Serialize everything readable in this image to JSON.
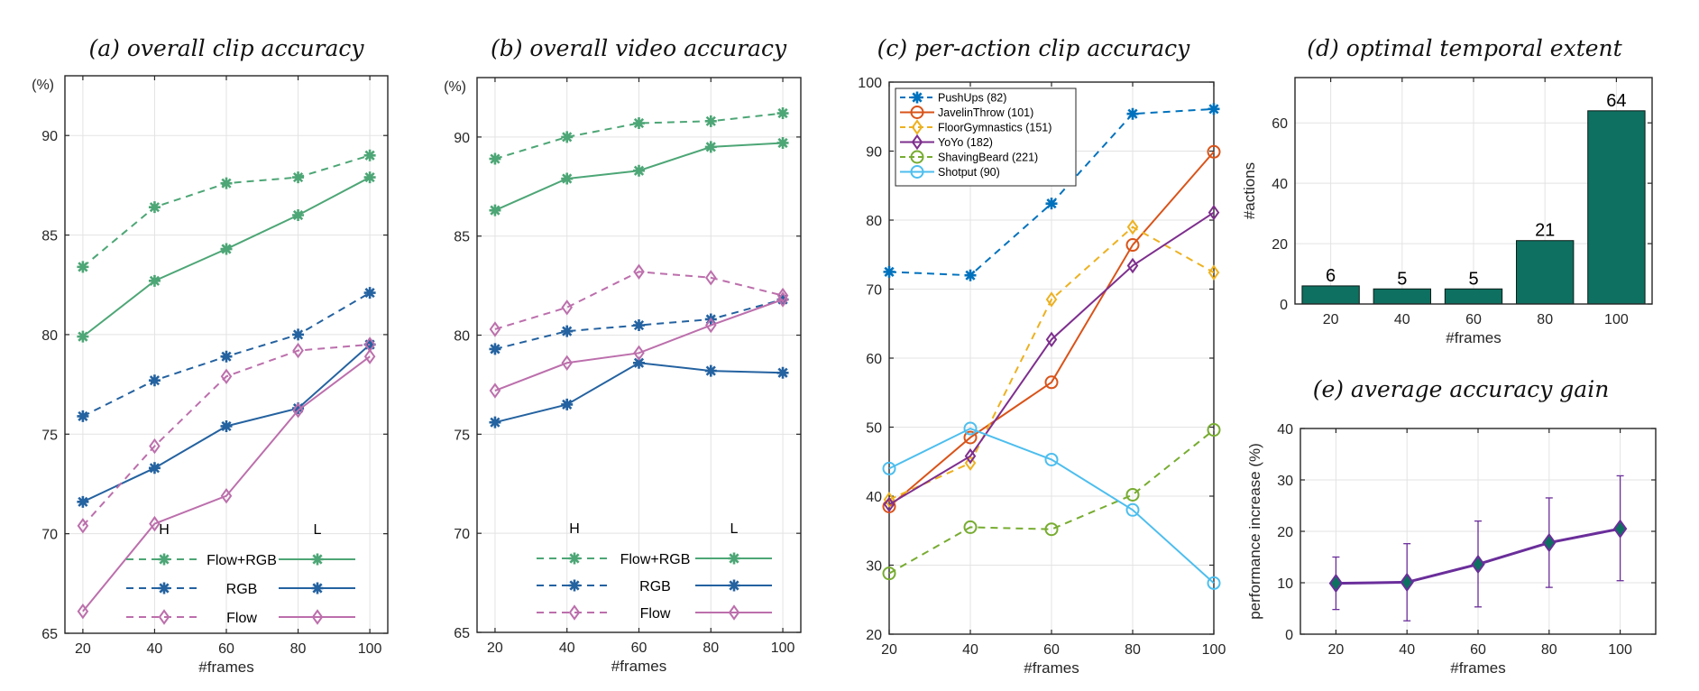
{
  "chart_data": [
    {
      "id": "a",
      "type": "line",
      "title": "(a) overall clip accuracy",
      "xlabel": "#frames",
      "ylabel": "(%)",
      "x": [
        20,
        40,
        60,
        80,
        100
      ],
      "xlim": [
        15,
        105
      ],
      "ylim": [
        65,
        93
      ],
      "yticks": [
        65,
        70,
        75,
        80,
        85,
        90
      ],
      "xticks": [
        20,
        40,
        60,
        80,
        100
      ],
      "grid": true,
      "legend": {
        "placement": "bottom-right",
        "col_headers": [
          "H",
          "L"
        ],
        "rows": [
          "Flow+RGB",
          "RGB",
          "Flow"
        ]
      },
      "series": [
        {
          "name": "Flow+RGB (H)",
          "group": "Flow+RGB",
          "style": "dashed",
          "marker": "asterisk",
          "color": "#4DA676",
          "values": [
            83.4,
            86.4,
            87.6,
            87.9,
            89.0
          ]
        },
        {
          "name": "Flow+RGB (L)",
          "group": "Flow+RGB",
          "style": "solid",
          "marker": "asterisk",
          "color": "#4DA676",
          "values": [
            79.9,
            82.7,
            84.3,
            86.0,
            87.9
          ]
        },
        {
          "name": "RGB (H)",
          "group": "RGB",
          "style": "dashed",
          "marker": "asterisk",
          "color": "#2462A0",
          "values": [
            75.9,
            77.7,
            78.9,
            80.0,
            82.1
          ]
        },
        {
          "name": "RGB (L)",
          "group": "RGB",
          "style": "solid",
          "marker": "asterisk",
          "color": "#2462A0",
          "values": [
            71.6,
            73.3,
            75.4,
            76.3,
            79.5
          ]
        },
        {
          "name": "Flow (H)",
          "group": "Flow",
          "style": "dashed",
          "marker": "diamond",
          "color": "#BC6FAC",
          "values": [
            70.4,
            74.4,
            77.9,
            79.2,
            79.5
          ]
        },
        {
          "name": "Flow (L)",
          "group": "Flow",
          "style": "solid",
          "marker": "diamond",
          "color": "#BC6FAC",
          "values": [
            66.1,
            70.5,
            71.9,
            76.2,
            78.9
          ]
        }
      ]
    },
    {
      "id": "b",
      "type": "line",
      "title": "(b) overall video accuracy",
      "xlabel": "#frames",
      "ylabel": "(%)",
      "x": [
        20,
        40,
        60,
        80,
        100
      ],
      "xlim": [
        15,
        105
      ],
      "ylim": [
        65,
        93
      ],
      "yticks": [
        65,
        70,
        75,
        80,
        85,
        90
      ],
      "xticks": [
        20,
        40,
        60,
        80,
        100
      ],
      "grid": true,
      "legend": {
        "placement": "bottom-right",
        "col_headers": [
          "H",
          "L"
        ],
        "rows": [
          "Flow+RGB",
          "RGB",
          "Flow"
        ]
      },
      "series": [
        {
          "name": "Flow+RGB (H)",
          "group": "Flow+RGB",
          "style": "dashed",
          "marker": "asterisk",
          "color": "#4DA676",
          "values": [
            88.9,
            90.0,
            90.7,
            90.8,
            91.2
          ]
        },
        {
          "name": "Flow+RGB (L)",
          "group": "Flow+RGB",
          "style": "solid",
          "marker": "asterisk",
          "color": "#4DA676",
          "values": [
            86.3,
            87.9,
            88.3,
            89.5,
            89.7
          ]
        },
        {
          "name": "RGB (H)",
          "group": "RGB",
          "style": "dashed",
          "marker": "asterisk",
          "color": "#2462A0",
          "values": [
            79.3,
            80.2,
            80.5,
            80.8,
            81.8
          ]
        },
        {
          "name": "RGB (L)",
          "group": "RGB",
          "style": "solid",
          "marker": "asterisk",
          "color": "#2462A0",
          "values": [
            75.6,
            76.5,
            78.6,
            78.2,
            78.1
          ]
        },
        {
          "name": "Flow (H)",
          "group": "Flow",
          "style": "dashed",
          "marker": "diamond",
          "color": "#BC6FAC",
          "values": [
            80.3,
            81.4,
            83.2,
            82.9,
            82.0
          ]
        },
        {
          "name": "Flow (L)",
          "group": "Flow",
          "style": "solid",
          "marker": "diamond",
          "color": "#BC6FAC",
          "values": [
            77.2,
            78.6,
            79.1,
            80.5,
            81.8
          ]
        }
      ]
    },
    {
      "id": "c",
      "type": "line",
      "title": "(c) per-action clip accuracy",
      "xlabel": "#frames",
      "ylabel": "",
      "x": [
        20,
        40,
        60,
        80,
        100
      ],
      "xlim": [
        20,
        100
      ],
      "ylim": [
        20,
        100
      ],
      "yticks": [
        20,
        30,
        40,
        50,
        60,
        70,
        80,
        90,
        100
      ],
      "xticks": [
        20,
        40,
        60,
        80,
        100
      ],
      "grid": true,
      "legend": {
        "placement": "top-left"
      },
      "series": [
        {
          "name": "PushUps (82)",
          "style": "dashed",
          "marker": "asterisk",
          "color": "#0072BD",
          "values": [
            72.5,
            72.0,
            82.4,
            95.4,
            96.1
          ]
        },
        {
          "name": "JavelinThrow (101)",
          "style": "solid",
          "marker": "circle",
          "color": "#D95319",
          "values": [
            38.5,
            48.5,
            56.5,
            76.4,
            89.9
          ]
        },
        {
          "name": "FloorGymnastics (151)",
          "style": "dashed",
          "marker": "diamond",
          "color": "#EDB120",
          "values": [
            39.5,
            44.8,
            68.5,
            79.0,
            72.4
          ]
        },
        {
          "name": "YoYo (182)",
          "style": "solid",
          "marker": "diamond",
          "color": "#7E2F8E",
          "values": [
            38.8,
            45.8,
            62.7,
            73.4,
            81.1
          ]
        },
        {
          "name": "ShavingBeard (221)",
          "style": "dashed",
          "marker": "circle",
          "color": "#77AC30",
          "values": [
            28.8,
            35.5,
            35.2,
            40.2,
            49.6
          ]
        },
        {
          "name": "Shotput (90)",
          "style": "solid",
          "marker": "circle",
          "color": "#4DBEEE",
          "values": [
            44.0,
            49.8,
            45.3,
            38.0,
            27.4
          ]
        }
      ]
    },
    {
      "id": "d",
      "type": "bar",
      "title": "(d) optimal temporal extent",
      "xlabel": "#frames",
      "ylabel": "#actions",
      "categories": [
        "20",
        "40",
        "60",
        "80",
        "100"
      ],
      "values": [
        6,
        5,
        5,
        21,
        64
      ],
      "data_labels": [
        "6",
        "5",
        "5",
        "21",
        "64"
      ],
      "ylim": [
        0,
        75
      ],
      "yticks": [
        0,
        20,
        40,
        60
      ],
      "grid": true,
      "color": "#0E7060"
    },
    {
      "id": "e",
      "type": "line",
      "title": "(e) average accuracy gain",
      "xlabel": "#frames",
      "ylabel": "performance increase (%)",
      "x": [
        20,
        40,
        60,
        80,
        100
      ],
      "xlim": [
        10,
        110
      ],
      "ylim": [
        0,
        40
      ],
      "yticks": [
        0,
        10,
        20,
        30,
        40
      ],
      "xticks": [
        20,
        40,
        60,
        80,
        100
      ],
      "grid": true,
      "series": [
        {
          "name": "average gain",
          "style": "solid",
          "marker": "diamond",
          "color": "#6A2E9A",
          "marker_fill": "#0E7060",
          "values": [
            9.9,
            10.1,
            13.6,
            17.8,
            20.5
          ],
          "err_low": [
            4.8,
            2.6,
            5.3,
            9.1,
            10.4
          ],
          "err_high": [
            15.0,
            17.6,
            22.0,
            26.5,
            30.8
          ]
        }
      ]
    }
  ]
}
